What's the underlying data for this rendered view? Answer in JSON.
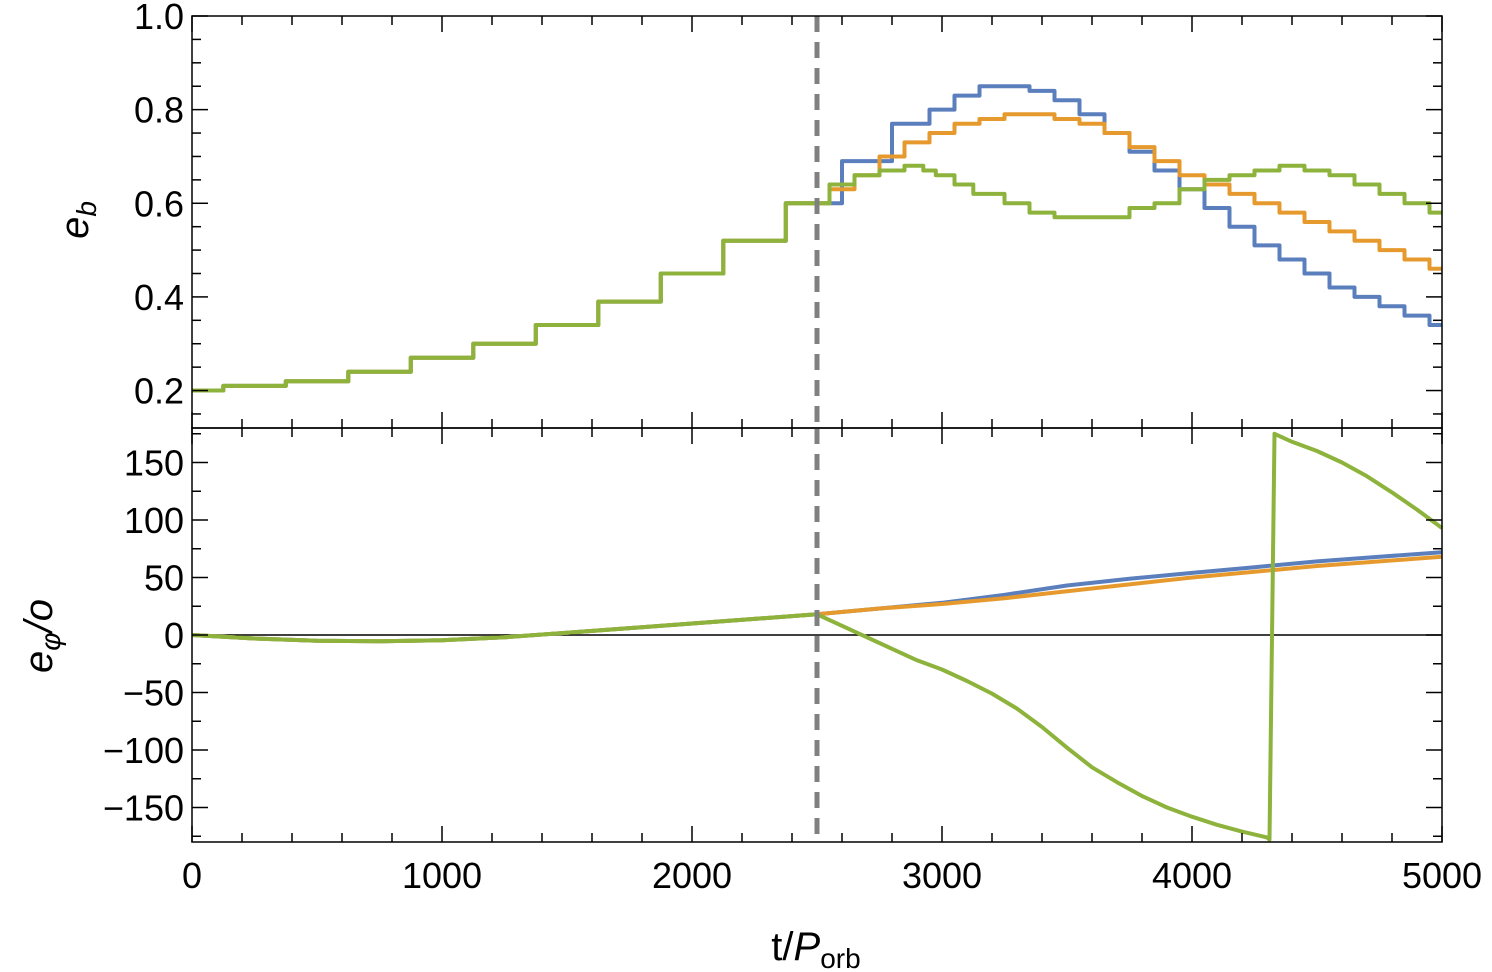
{
  "chart_data": [
    {
      "type": "line",
      "panel": "top",
      "ylabel": "e",
      "ylabel_subscript": "b",
      "xlim": [
        0,
        5000
      ],
      "ylim": [
        0.12,
        1.0
      ],
      "yticks": [
        0.2,
        0.4,
        0.6,
        0.8,
        1.0
      ],
      "ytick_labels": [
        "0.2",
        "0.4",
        "0.6",
        "0.8",
        "1.0"
      ],
      "vline_x": 2500,
      "series": [
        {
          "color": "#5b7fbd",
          "x": [
            0,
            250,
            500,
            750,
            1000,
            1250,
            1500,
            1750,
            2000,
            2250,
            2500,
            2700,
            2900,
            3000,
            3100,
            3200,
            3300,
            3400,
            3500,
            3600,
            3700,
            3800,
            3900,
            4000,
            4100,
            4200,
            4300,
            4400,
            4500,
            4600,
            4700,
            4800,
            4900,
            5000
          ],
          "y": [
            0.2,
            0.21,
            0.22,
            0.24,
            0.27,
            0.3,
            0.34,
            0.39,
            0.45,
            0.52,
            0.6,
            0.69,
            0.77,
            0.8,
            0.83,
            0.85,
            0.85,
            0.84,
            0.82,
            0.79,
            0.75,
            0.71,
            0.67,
            0.63,
            0.59,
            0.55,
            0.51,
            0.48,
            0.45,
            0.42,
            0.4,
            0.38,
            0.36,
            0.34
          ]
        },
        {
          "color": "#e69a2e",
          "x": [
            0,
            250,
            500,
            750,
            1000,
            1250,
            1500,
            1750,
            2000,
            2250,
            2500,
            2600,
            2700,
            2800,
            2900,
            3000,
            3100,
            3200,
            3300,
            3400,
            3500,
            3600,
            3700,
            3800,
            3900,
            4000,
            4100,
            4200,
            4300,
            4400,
            4500,
            4600,
            4700,
            4800,
            4900,
            5000
          ],
          "y": [
            0.2,
            0.21,
            0.22,
            0.24,
            0.27,
            0.3,
            0.34,
            0.39,
            0.45,
            0.52,
            0.6,
            0.63,
            0.66,
            0.7,
            0.73,
            0.75,
            0.77,
            0.78,
            0.79,
            0.79,
            0.78,
            0.77,
            0.75,
            0.72,
            0.69,
            0.66,
            0.64,
            0.62,
            0.6,
            0.58,
            0.56,
            0.54,
            0.52,
            0.5,
            0.48,
            0.46
          ]
        },
        {
          "color": "#8db33c",
          "x": [
            0,
            250,
            500,
            750,
            1000,
            1250,
            1500,
            1750,
            2000,
            2250,
            2500,
            2600,
            2700,
            2800,
            2900,
            2950,
            3000,
            3100,
            3150,
            3200,
            3300,
            3400,
            3500,
            3600,
            3700,
            3800,
            3900,
            4000,
            4100,
            4200,
            4300,
            4400,
            4500,
            4600,
            4700,
            4800,
            4900,
            5000
          ],
          "y": [
            0.2,
            0.21,
            0.22,
            0.24,
            0.27,
            0.3,
            0.34,
            0.39,
            0.45,
            0.52,
            0.6,
            0.64,
            0.66,
            0.67,
            0.68,
            0.67,
            0.66,
            0.64,
            0.62,
            0.62,
            0.6,
            0.58,
            0.57,
            0.57,
            0.57,
            0.59,
            0.6,
            0.63,
            0.65,
            0.66,
            0.67,
            0.68,
            0.67,
            0.66,
            0.64,
            0.62,
            0.6,
            0.58
          ]
        }
      ]
    },
    {
      "type": "line",
      "panel": "bottom",
      "ylabel": "e",
      "ylabel_subscript": "φ",
      "ylabel_suffix": "/o",
      "xlabel": "t/",
      "xlabel_italic": "P",
      "xlabel_subscript": "orb",
      "xlim": [
        0,
        5000
      ],
      "ylim": [
        -180,
        180
      ],
      "xticks": [
        0,
        1000,
        2000,
        3000,
        4000,
        5000
      ],
      "xtick_labels": [
        "0",
        "1000",
        "2000",
        "3000",
        "4000",
        "5000"
      ],
      "yticks": [
        -150,
        -100,
        -50,
        0,
        50,
        100,
        150
      ],
      "ytick_labels": [
        "−150",
        "−100",
        "−50",
        "0",
        "50",
        "100",
        "150"
      ],
      "hline_y": 0,
      "vline_x": 2500,
      "series": [
        {
          "color": "#5b7fbd",
          "x": [
            0,
            250,
            500,
            750,
            1000,
            1250,
            1500,
            1750,
            2000,
            2250,
            2500,
            2750,
            3000,
            3250,
            3500,
            3750,
            4000,
            4250,
            4500,
            4750,
            5000
          ],
          "y": [
            0,
            -3,
            -5,
            -5.5,
            -4.5,
            -2,
            2,
            6,
            10,
            14,
            18,
            23,
            28,
            35,
            43,
            49,
            54,
            59,
            64,
            68,
            72
          ]
        },
        {
          "color": "#e69a2e",
          "x": [
            0,
            250,
            500,
            750,
            1000,
            1250,
            1500,
            1750,
            2000,
            2250,
            2500,
            2750,
            3000,
            3250,
            3500,
            3750,
            4000,
            4250,
            4500,
            4750,
            5000
          ],
          "y": [
            0,
            -3,
            -5,
            -5.5,
            -4.5,
            -2,
            2,
            6,
            10,
            14,
            18,
            23,
            27,
            32,
            38,
            44,
            50,
            55,
            60,
            64,
            68
          ]
        },
        {
          "color": "#8db33c",
          "x": [
            0,
            250,
            500,
            750,
            1000,
            1250,
            1500,
            1750,
            2000,
            2250,
            2500,
            2600,
            2700,
            2800,
            2900,
            3000,
            3100,
            3200,
            3300,
            3400,
            3500,
            3600,
            3700,
            3800,
            3900,
            4000,
            4100,
            4200,
            4300,
            4310,
            4330,
            4400,
            4500,
            4600,
            4700,
            4800,
            4900,
            5000
          ],
          "y": [
            0,
            -3,
            -5,
            -5.5,
            -4.5,
            -2,
            2,
            6,
            10,
            14,
            18,
            8,
            -2,
            -12,
            -22,
            -30,
            -40,
            -51,
            -64,
            -80,
            -98,
            -115,
            -128,
            -140,
            -150,
            -158,
            -165,
            -171,
            -176,
            -178,
            175,
            168,
            160,
            150,
            138,
            124,
            109,
            93
          ]
        }
      ]
    }
  ]
}
